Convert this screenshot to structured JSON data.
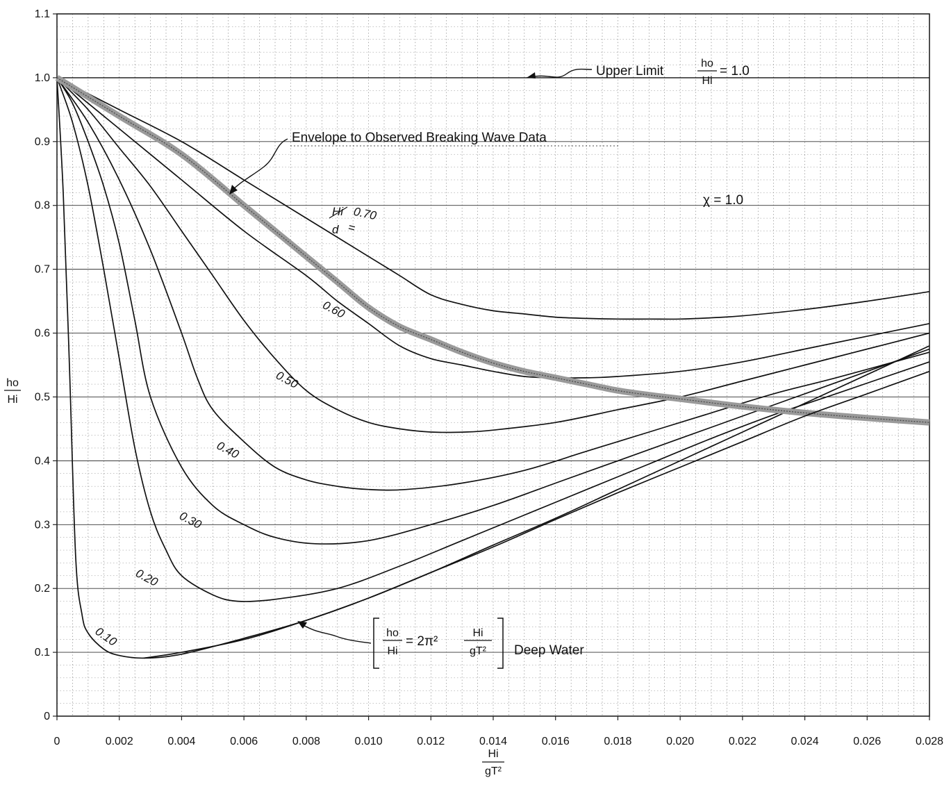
{
  "chart_data": {
    "type": "line",
    "title": "",
    "xlabel": "Hi / gT²",
    "ylabel": "ho / Hi",
    "xlim": [
      0,
      0.028
    ],
    "ylim": [
      0,
      1.1
    ],
    "x_ticks": [
      "0",
      "0.002",
      "0.004",
      "0.006",
      "0.008",
      "0.010",
      "0.012",
      "0.014",
      "0.016",
      "0.018",
      "0.020",
      "0.022",
      "0.024",
      "0.026",
      "0.028"
    ],
    "y_ticks": [
      "0",
      "0.1",
      "0.2",
      "0.3",
      "0.4",
      "0.5",
      "0.6",
      "0.7",
      "0.8",
      "0.9",
      "1.0",
      "1.1"
    ],
    "grid": true,
    "parameter_label": "Hi/d =",
    "chi_label": "χ = 1.0",
    "series": [
      {
        "name": "0.10",
        "x": [
          0,
          0.0002,
          0.0004,
          0.0006,
          0.0008,
          0.001,
          0.0015,
          0.002,
          0.0028,
          0.004,
          0.006,
          0.008,
          0.01,
          0.012,
          0.014,
          0.016,
          0.018,
          0.02,
          0.022,
          0.024,
          0.026,
          0.028
        ],
        "y": [
          1.0,
          0.82,
          0.55,
          0.25,
          0.16,
          0.13,
          0.105,
          0.095,
          0.091,
          0.097,
          0.122,
          0.15,
          0.185,
          0.225,
          0.268,
          0.31,
          0.355,
          0.4,
          0.445,
          0.49,
          0.535,
          0.58
        ]
      },
      {
        "name": "0.20",
        "x": [
          0,
          0.0005,
          0.001,
          0.0015,
          0.002,
          0.0025,
          0.003,
          0.0035,
          0.004,
          0.005,
          0.0058,
          0.007,
          0.009,
          0.011,
          0.013,
          0.015,
          0.017,
          0.019,
          0.021,
          0.023,
          0.025,
          0.028
        ],
        "y": [
          1.0,
          0.93,
          0.83,
          0.7,
          0.56,
          0.42,
          0.32,
          0.26,
          0.22,
          0.19,
          0.18,
          0.183,
          0.2,
          0.235,
          0.275,
          0.315,
          0.355,
          0.395,
          0.435,
          0.472,
          0.505,
          0.555
        ]
      },
      {
        "name": "0.30",
        "x": [
          0,
          0.0005,
          0.001,
          0.0015,
          0.002,
          0.0025,
          0.003,
          0.004,
          0.005,
          0.006,
          0.007,
          0.0083,
          0.01,
          0.012,
          0.014,
          0.016,
          0.018,
          0.02,
          0.022,
          0.024,
          0.026,
          0.028
        ],
        "y": [
          1.0,
          0.96,
          0.9,
          0.83,
          0.74,
          0.62,
          0.5,
          0.39,
          0.33,
          0.3,
          0.28,
          0.27,
          0.275,
          0.3,
          0.33,
          0.365,
          0.4,
          0.435,
          0.47,
          0.505,
          0.54,
          0.575
        ]
      },
      {
        "name": "0.40",
        "x": [
          0,
          0.001,
          0.002,
          0.003,
          0.004,
          0.0045,
          0.005,
          0.006,
          0.007,
          0.008,
          0.009,
          0.01,
          0.0112,
          0.013,
          0.015,
          0.017,
          0.019,
          0.021,
          0.023,
          0.025,
          0.028
        ],
        "y": [
          1.0,
          0.93,
          0.84,
          0.73,
          0.6,
          0.53,
          0.48,
          0.43,
          0.39,
          0.37,
          0.36,
          0.355,
          0.355,
          0.365,
          0.385,
          0.415,
          0.445,
          0.475,
          0.505,
          0.53,
          0.57
        ]
      },
      {
        "name": "0.50",
        "x": [
          0,
          0.001,
          0.002,
          0.003,
          0.004,
          0.005,
          0.006,
          0.007,
          0.008,
          0.009,
          0.01,
          0.011,
          0.012,
          0.0131,
          0.014,
          0.016,
          0.018,
          0.02,
          0.022,
          0.024,
          0.026,
          0.028
        ],
        "y": [
          1.0,
          0.95,
          0.89,
          0.83,
          0.76,
          0.69,
          0.62,
          0.56,
          0.51,
          0.48,
          0.46,
          0.45,
          0.445,
          0.445,
          0.448,
          0.46,
          0.48,
          0.5,
          0.525,
          0.55,
          0.575,
          0.6
        ]
      },
      {
        "name": "0.60",
        "x": [
          0,
          0.002,
          0.004,
          0.006,
          0.008,
          0.009,
          0.01,
          0.011,
          0.012,
          0.013,
          0.014,
          0.015,
          0.016,
          0.017,
          0.018,
          0.02,
          0.022,
          0.024,
          0.026,
          0.028
        ],
        "y": [
          1.0,
          0.92,
          0.84,
          0.76,
          0.69,
          0.65,
          0.615,
          0.58,
          0.56,
          0.55,
          0.54,
          0.532,
          0.53,
          0.53,
          0.532,
          0.54,
          0.555,
          0.575,
          0.595,
          0.615
        ]
      },
      {
        "name": "0.70",
        "x": [
          0,
          0.002,
          0.004,
          0.006,
          0.008,
          0.01,
          0.011,
          0.012,
          0.013,
          0.014,
          0.015,
          0.016,
          0.017,
          0.018,
          0.019,
          0.02,
          0.021,
          0.022,
          0.024,
          0.026,
          0.028
        ],
        "y": [
          1.0,
          0.95,
          0.9,
          0.84,
          0.78,
          0.72,
          0.69,
          0.66,
          0.645,
          0.635,
          0.63,
          0.625,
          0.623,
          0.622,
          0.622,
          0.622,
          0.624,
          0.627,
          0.637,
          0.65,
          0.665
        ]
      },
      {
        "name": "Envelope to Observed Breaking Wave Data",
        "x": [
          0,
          0.002,
          0.004,
          0.006,
          0.007,
          0.008,
          0.009,
          0.01,
          0.011,
          0.012,
          0.013,
          0.014,
          0.015,
          0.016,
          0.017,
          0.018,
          0.019,
          0.02,
          0.022,
          0.024,
          0.026,
          0.028
        ],
        "y": [
          1.0,
          0.94,
          0.88,
          0.8,
          0.76,
          0.72,
          0.68,
          0.64,
          0.61,
          0.59,
          0.57,
          0.553,
          0.54,
          0.53,
          0.52,
          0.51,
          0.503,
          0.497,
          0.485,
          0.475,
          0.467,
          0.46
        ]
      },
      {
        "name": "Deep Water",
        "x": [
          0.0028,
          0.004,
          0.006,
          0.008,
          0.01,
          0.012,
          0.014,
          0.016,
          0.018,
          0.02,
          0.022,
          0.024,
          0.026,
          0.028
        ],
        "y": [
          0.091,
          0.1,
          0.12,
          0.15,
          0.185,
          0.225,
          0.265,
          0.308,
          0.35,
          0.39,
          0.43,
          0.47,
          0.505,
          0.54
        ]
      }
    ],
    "annotations": {
      "upper_limit": "Upper Limit",
      "upper_limit_eq": "= 1.0",
      "envelope": "Envelope to Observed Breaking Wave Data",
      "deep_water": "Deep Water",
      "deep_water_eq": "= 2π²",
      "chi": "χ = 1.0"
    },
    "fraction_text": {
      "h0": "ho",
      "Hi": "Hi",
      "d": "d",
      "gT2": "gT²"
    },
    "curve_labels": [
      "0.10",
      "0.20",
      "0.30",
      "0.40",
      "0.50",
      "0.60",
      "0.70"
    ]
  }
}
